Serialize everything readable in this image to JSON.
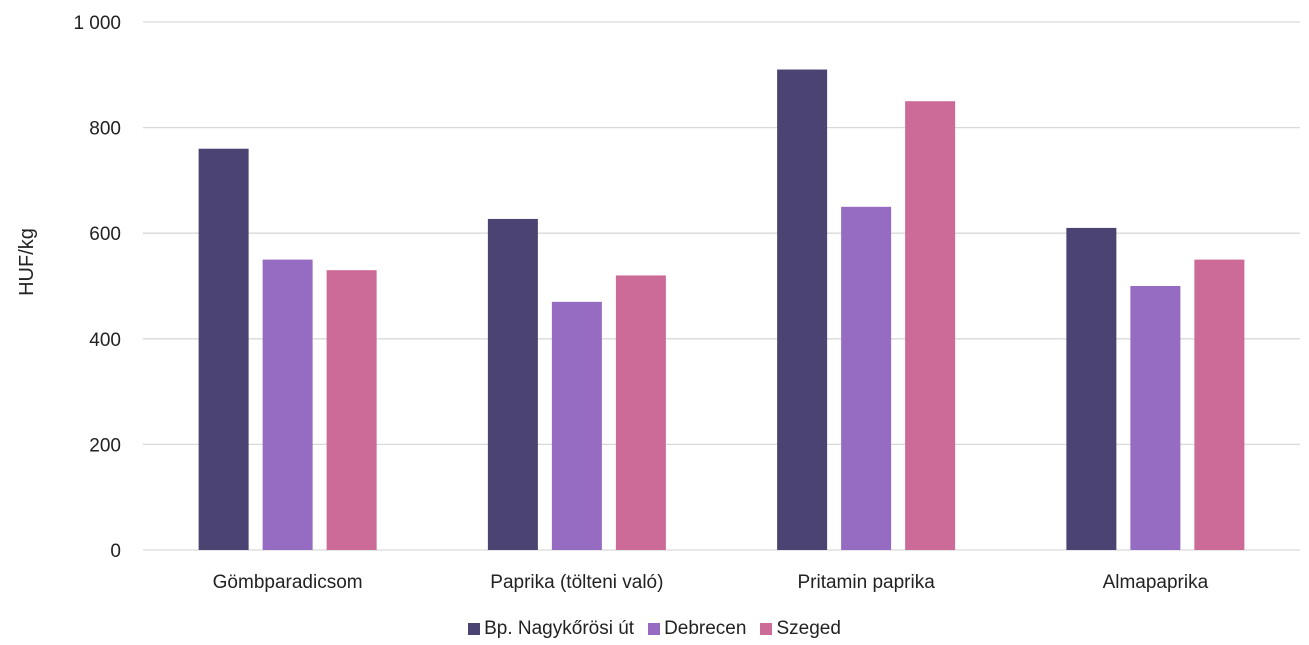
{
  "chart_data": {
    "type": "bar",
    "title": "",
    "xlabel": "",
    "ylabel": "HUF/kg",
    "ylim": [
      0,
      1000
    ],
    "yticks": [
      0,
      200,
      400,
      600,
      800,
      1000
    ],
    "ytick_labels": [
      "0",
      "200",
      "400",
      "600",
      "800",
      "1 000"
    ],
    "categories": [
      "Gömbparadicsom",
      "Paprika (tölteni való)",
      "Pritamin paprika",
      "Almapaprika"
    ],
    "series": [
      {
        "name": "Bp. Nagykőrösi út",
        "color": "#4b4372",
        "values": [
          760,
          627,
          910,
          610
        ]
      },
      {
        "name": "Debrecen",
        "color": "#966bc2",
        "values": [
          550,
          470,
          650,
          500
        ]
      },
      {
        "name": "Szeged",
        "color": "#cc6a98",
        "values": [
          530,
          520,
          850,
          550
        ]
      }
    ],
    "grid": true,
    "legend_position": "bottom"
  }
}
